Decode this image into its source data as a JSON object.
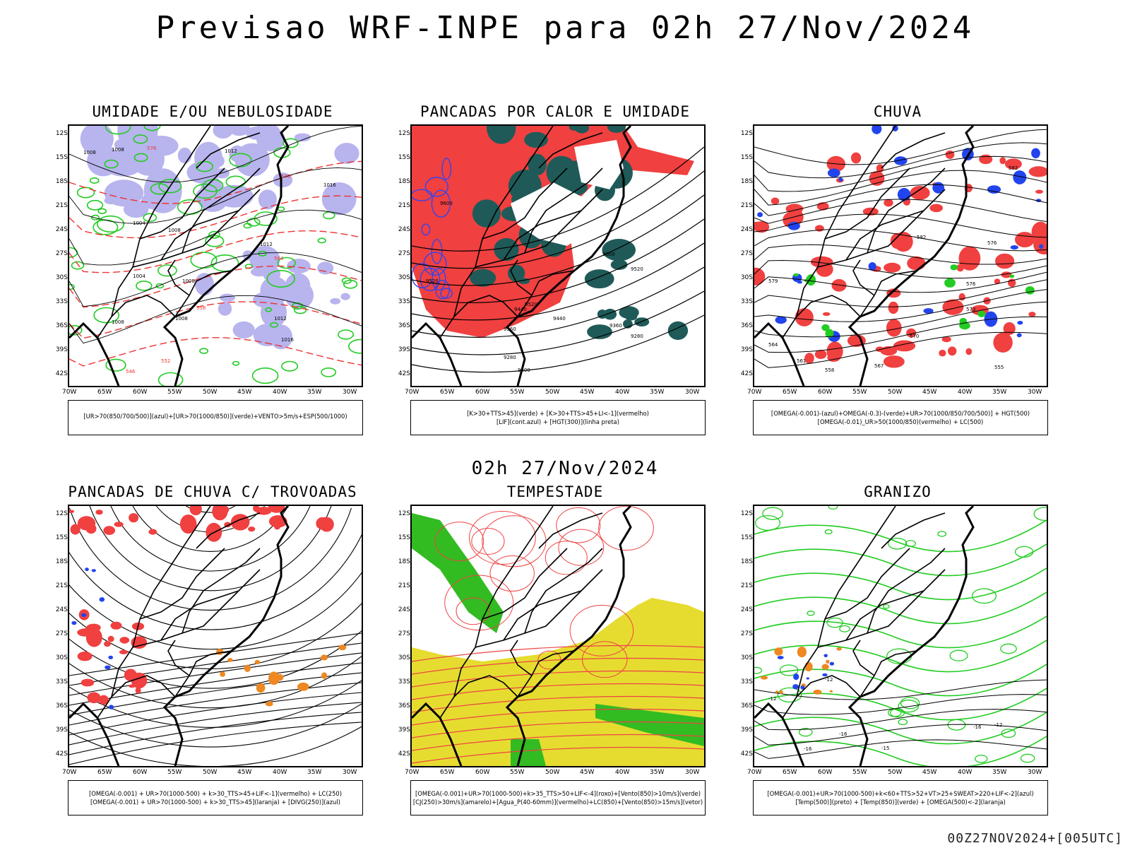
{
  "header": {
    "title": "Previsao WRF-INPE  para 02h 27/Nov/2024",
    "mid_time": "02h 27/Nov/2024",
    "footer": "00Z27NOV2024+[005UTC]"
  },
  "axes": {
    "lat_ticks": [
      "12S",
      "15S",
      "18S",
      "21S",
      "24S",
      "27S",
      "30S",
      "33S",
      "36S",
      "39S",
      "42S"
    ],
    "lon_ticks": [
      "70W",
      "65W",
      "60W",
      "55W",
      "50W",
      "45W",
      "40W",
      "35W",
      "30W"
    ]
  },
  "panels": [
    {
      "title": "UMIDADE E/OU NEBULOSIDADE",
      "legend": [
        "[UR>70(850/700/500)](azul)+[UR>70(1000/850)](verde)+VENTO>5m/s+ESP(500/1000)"
      ],
      "labels": [
        "1008",
        "1008",
        "1012",
        "1016",
        "1004",
        "1008",
        "1012",
        "1004",
        "1008",
        "1008",
        "1012",
        "1016",
        "1008",
        "576",
        "570",
        "564",
        "558",
        "552",
        "546"
      ]
    },
    {
      "title": "PANCADAS POR CALOR E UMIDADE",
      "legend": [
        "[K>30+TTS>45](verde) + [K>30+TTS>45+LI<-1](vermelho)",
        "[LIF](cont.azul) + [HGT(300)](linha preta)"
      ],
      "labels": [
        "9600",
        "9520",
        "9600",
        "9520",
        "9440",
        "9360",
        "9280",
        "9200",
        "9520",
        "9440",
        "9360",
        "9280"
      ]
    },
    {
      "title": "CHUVA",
      "legend": [
        "[OMEGA(-0.001)-(azul)+OMEGA(-0.3)-(verde)+UR>70(1000/850/700/500)] + HGT(500)",
        "[OMEGA(-0.01)_UR>50(1000/850)(vermelho) + LC(500)"
      ],
      "labels": [
        "582",
        "582",
        "579",
        "576",
        "573",
        "570",
        "567",
        "564",
        "561",
        "558",
        "555",
        "576"
      ]
    },
    {
      "title": "PANCADAS DE CHUVA C/ TROVOADAS",
      "legend": [
        "[OMEGA(-0.001) + UR>70(1000-500) + k>30_TTS>45+LIF<-1](vermelho) + LC(250)",
        "[OMEGA(-0.001) + UR>70(1000-500) + k>30_TTS>45](laranja) + [DIVG(250)](azul)"
      ],
      "labels": []
    },
    {
      "title": "TEMPESTADE",
      "legend": [
        "[OMEGA(-0.001)+UR>70(1000-500)+k>35_TTS>50+LIF<-4](roxo)+[Vento(850)>10m/s](verde)",
        "[CJ(250)>30m/s](amarelo)+[Agua_P(40-60mm)](vermelho)+LC(850)+[Vento(850)>15m/s](vetor)"
      ],
      "labels": []
    },
    {
      "title": "GRANIZO",
      "legend": [
        "[OMEGA(-0.001)+UR>70(1000-500)+k<60+TTS>52+VT>25+SWEAT>220+LIF<-2](azul)",
        "[Temp(500)](preto) + [Temp(850)](verde) + [OMEGA(500)<-2](laranja)"
      ],
      "labels": [
        "-12",
        "-12",
        "-16",
        "-16",
        "-15",
        "-16",
        "-12"
      ]
    }
  ]
}
